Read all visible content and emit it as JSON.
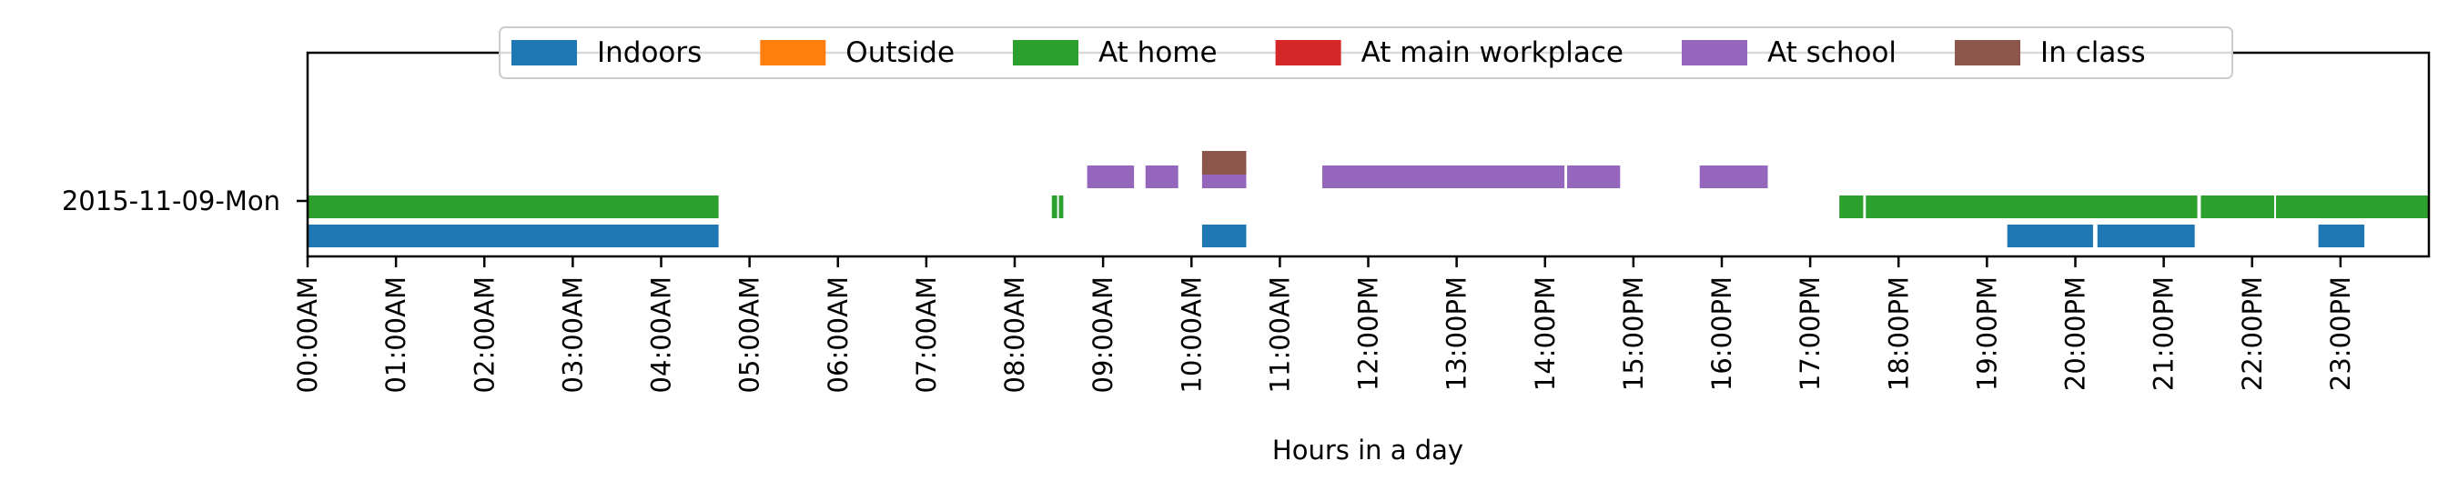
{
  "chart_data": {
    "type": "bar",
    "orientation": "horizontal-timeline",
    "title": "",
    "xlabel": "Hours in a day",
    "ylabel": "",
    "xlim": [
      0,
      24
    ],
    "grid": false,
    "legend_position": "top-center",
    "row_label": "2015-11-09-Mon",
    "x_tick_labels": [
      "00:00AM",
      "01:00AM",
      "02:00AM",
      "03:00AM",
      "04:00AM",
      "05:00AM",
      "06:00AM",
      "07:00AM",
      "08:00AM",
      "09:00AM",
      "10:00AM",
      "11:00AM",
      "12:00PM",
      "13:00PM",
      "14:00PM",
      "15:00PM",
      "16:00PM",
      "17:00PM",
      "18:00PM",
      "19:00PM",
      "20:00PM",
      "21:00PM",
      "22:00PM",
      "23:00PM"
    ],
    "series": [
      {
        "name": "Indoors",
        "color": "#1f77b4",
        "intervals": [
          [
            0.0,
            4.65
          ],
          [
            10.12,
            10.62
          ],
          [
            19.23,
            20.2
          ],
          [
            20.25,
            21.35
          ],
          [
            22.75,
            23.27
          ]
        ]
      },
      {
        "name": "Outside",
        "color": "#ff7f0e",
        "intervals": []
      },
      {
        "name": "At home",
        "color": "#2ca02c",
        "intervals": [
          [
            0.0,
            4.65
          ],
          [
            8.42,
            8.48
          ],
          [
            8.5,
            8.55
          ],
          [
            17.33,
            17.6
          ],
          [
            17.63,
            21.38
          ],
          [
            21.42,
            22.25
          ],
          [
            22.27,
            24.0
          ]
        ]
      },
      {
        "name": "At main workplace",
        "color": "#d62728",
        "intervals": []
      },
      {
        "name": "At school",
        "color": "#9467bd",
        "intervals": [
          [
            8.82,
            9.35
          ],
          [
            9.48,
            9.85
          ],
          [
            10.12,
            10.62
          ],
          [
            11.48,
            14.22
          ],
          [
            14.25,
            14.85
          ],
          [
            15.75,
            16.52
          ]
        ]
      },
      {
        "name": "In class",
        "color": "#8c564b",
        "intervals": [
          [
            10.12,
            10.62
          ]
        ]
      }
    ]
  }
}
